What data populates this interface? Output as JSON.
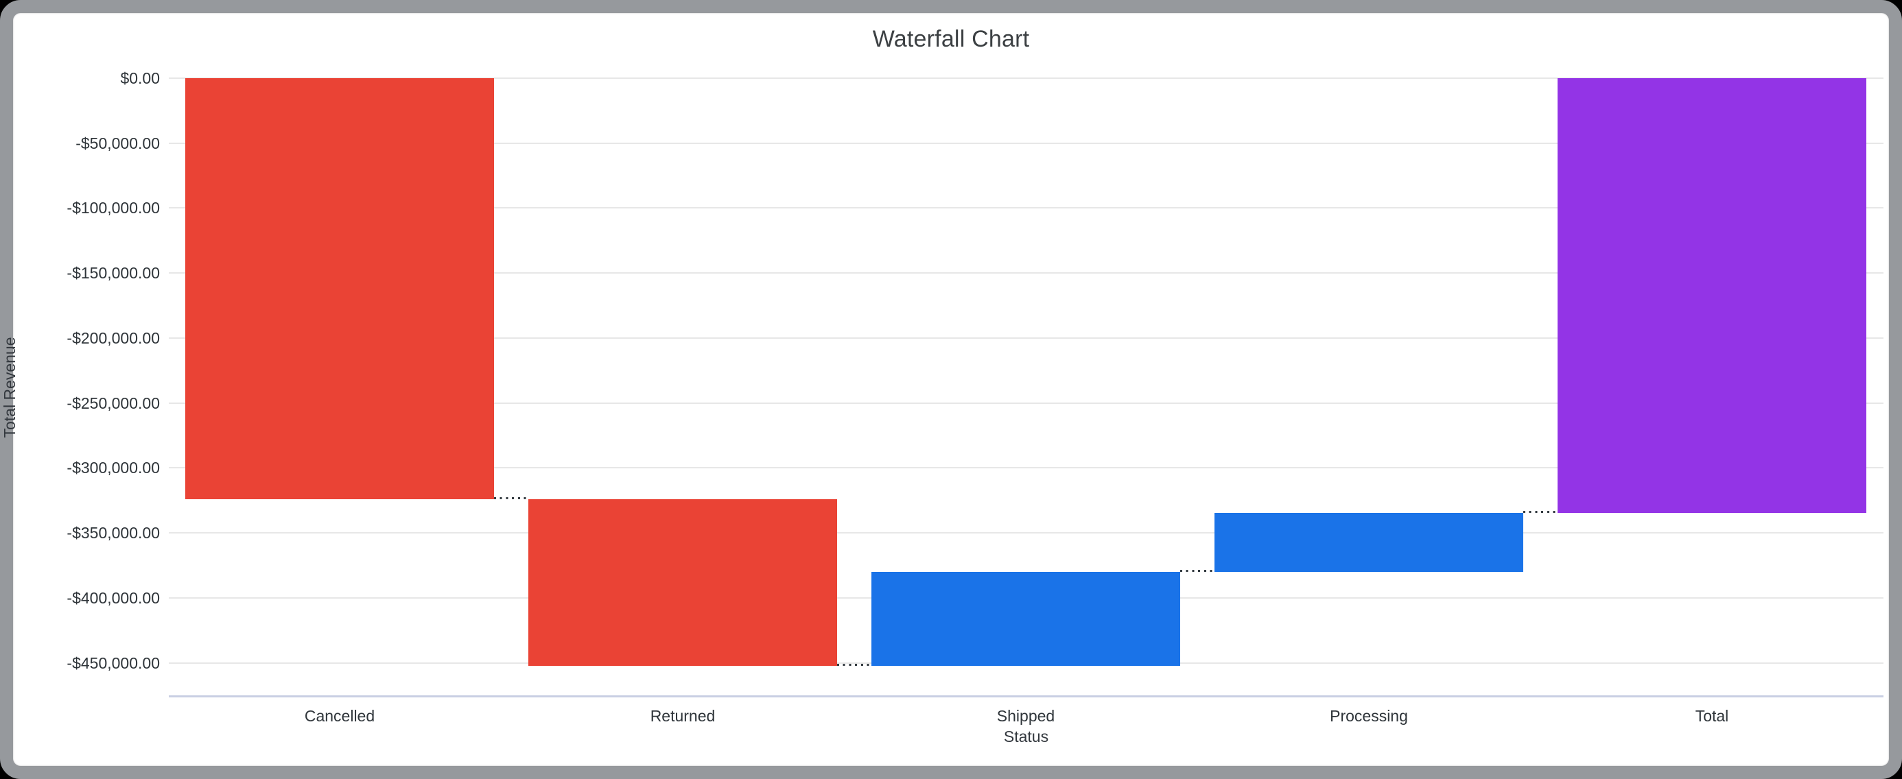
{
  "window": {
    "frame_color": "#96999d",
    "outside_color": "#000000",
    "card_color": "#ffffff"
  },
  "chart_data": {
    "type": "bar",
    "subtype": "waterfall",
    "title": "Waterfall Chart",
    "xlabel": "Status",
    "ylabel": "Total Revenue",
    "legend": "none",
    "grid": true,
    "categories": [
      "Cancelled",
      "Returned",
      "Shipped",
      "Processing",
      "Total"
    ],
    "bars": [
      {
        "label": "Cancelled",
        "start": 0,
        "end": -324000,
        "delta": -324000,
        "role": "decrease",
        "color": "#ea4335"
      },
      {
        "label": "Returned",
        "start": -324000,
        "end": -452000,
        "delta": -128000,
        "role": "decrease",
        "color": "#ea4335"
      },
      {
        "label": "Shipped",
        "start": -452000,
        "end": -380000,
        "delta": 72000,
        "role": "increase",
        "color": "#1a73e8"
      },
      {
        "label": "Processing",
        "start": -380000,
        "end": -334500,
        "delta": 45500,
        "role": "increase",
        "color": "#1a73e8"
      },
      {
        "label": "Total",
        "start": 0,
        "end": -334500,
        "delta": -334500,
        "role": "total",
        "color": "#9334e6"
      }
    ],
    "y_axis": {
      "max": 0,
      "min": -476000,
      "tick_step": 50000,
      "tick_values": [
        0,
        -50000,
        -100000,
        -150000,
        -200000,
        -250000,
        -300000,
        -350000,
        -400000,
        -450000
      ],
      "tick_labels": [
        "$0.00",
        "-$50,000.00",
        "-$100,000.00",
        "-$150,000.00",
        "-$200,000.00",
        "-$250,000.00",
        "-$300,000.00",
        "-$350,000.00",
        "-$400,000.00",
        "-$450,000.00"
      ]
    },
    "colors": {
      "decrease": "#ea4335",
      "increase": "#1a73e8",
      "total": "#9334e6",
      "gridline": "#e7e7e7",
      "baseline": "#c9cfe3",
      "connector": "#333a40",
      "title_text": "#3c4043",
      "tick_text": "#2f353a"
    }
  }
}
